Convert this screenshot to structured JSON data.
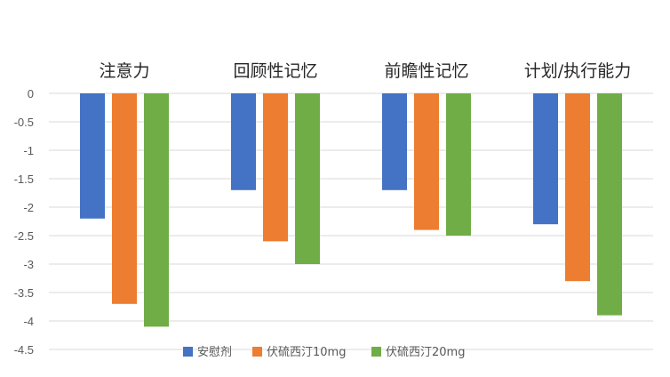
{
  "chart_data": {
    "type": "bar",
    "title": "",
    "xlabel": "",
    "ylabel": "",
    "categories": [
      "注意力",
      "回顾性记忆",
      "前瞻性记忆",
      "计划/执行能力"
    ],
    "series": [
      {
        "name": "安慰剂",
        "color": "#4472c4",
        "values": [
          -2.2,
          -1.7,
          -1.7,
          -2.3
        ]
      },
      {
        "name": "伏硫西汀10mg",
        "color": "#ed7d31",
        "values": [
          -3.7,
          -2.6,
          -2.4,
          -3.3
        ]
      },
      {
        "name": "伏硫西汀20mg",
        "color": "#70ad47",
        "values": [
          -4.1,
          -3.0,
          -2.5,
          -3.9
        ]
      }
    ],
    "yticks": [
      "0",
      "-0.5",
      "-1",
      "-1.5",
      "-2",
      "-2.5",
      "-3",
      "-3.5",
      "-4",
      "-4.5"
    ],
    "ylim": [
      -4.5,
      0
    ],
    "grid": true,
    "legend_position": "bottom",
    "category_label_position": "top"
  }
}
